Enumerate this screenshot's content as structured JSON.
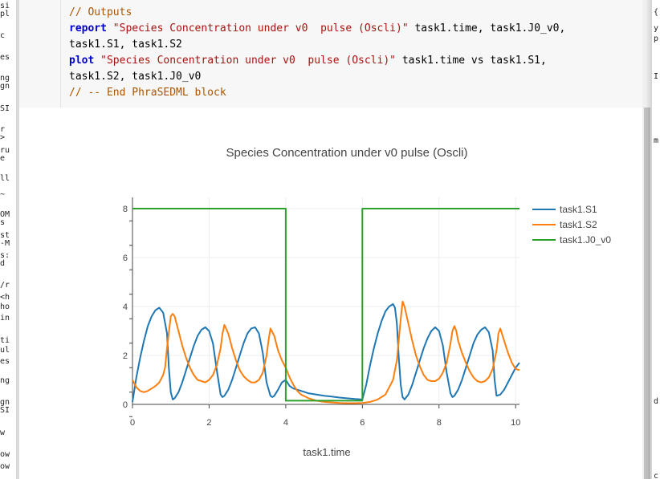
{
  "code_cell": {
    "comment_outputs": "// Outputs",
    "kw_report": "report",
    "report_title": "\"Species Concentration under v0  pulse (Oscli)\"",
    "report_args_1": " task1.time, task1.J0_v0,",
    "report_args_2": "task1.S1, task1.S2",
    "kw_plot": "plot",
    "plot_title": "\"Species Concentration under v0  pulse (Oscli)\"",
    "plot_args_1": " task1.time vs task1.S1,",
    "plot_args_2": "task1.S2, task1.J0_v0",
    "comment_end": "// -- End PhraSEDML block"
  },
  "left_fragments": [
    "si",
    "pl",
    "c",
    "es",
    "ng",
    "gn",
    "SI",
    "r",
    ">",
    "ru",
    "e",
    "ll",
    "~",
    "OM",
    "s",
    "st",
    "-M",
    "s:",
    "d",
    "/r",
    "<h",
    "ho",
    "in",
    "ti",
    "ul",
    "es",
    "ng",
    "gn",
    "SI",
    "w",
    "ow",
    "ow"
  ],
  "right_fragments": [
    "{",
    "y",
    "p",
    "I",
    "m",
    "d",
    "c"
  ],
  "colors": {
    "series_s1": "#1f77b4",
    "series_s2": "#ff7f0e",
    "series_j0": "#2ca02c"
  },
  "chart_data": {
    "type": "line",
    "title": "Species Concentration under v0  pulse (Oscli)",
    "xlabel": "task1.time",
    "ylabel": "",
    "xlim": [
      0,
      10.1
    ],
    "ylim": [
      -0.2,
      8.5
    ],
    "x_ticks": [
      0,
      2,
      4,
      6,
      8,
      10
    ],
    "y_ticks": [
      0,
      2,
      4,
      6,
      8
    ],
    "grid": true,
    "legend_position": "top-right",
    "series": [
      {
        "name": "task1.S1",
        "x": [
          0,
          0.1,
          0.2,
          0.3,
          0.4,
          0.5,
          0.6,
          0.7,
          0.8,
          0.9,
          0.95,
          1.0,
          1.05,
          1.1,
          1.2,
          1.3,
          1.4,
          1.5,
          1.6,
          1.7,
          1.8,
          1.9,
          2.0,
          2.1,
          2.2,
          2.3,
          2.35,
          2.4,
          2.5,
          2.6,
          2.7,
          2.8,
          2.9,
          3.0,
          3.1,
          3.2,
          3.3,
          3.4,
          3.5,
          3.6,
          3.65,
          3.7,
          3.8,
          3.9,
          4.0,
          4.1,
          4.2,
          4.4,
          4.6,
          4.8,
          5.0,
          5.2,
          5.4,
          5.6,
          5.8,
          6.0,
          6.1,
          6.2,
          6.3,
          6.4,
          6.5,
          6.6,
          6.7,
          6.8,
          6.85,
          6.9,
          6.95,
          7.0,
          7.05,
          7.1,
          7.2,
          7.3,
          7.4,
          7.5,
          7.6,
          7.7,
          7.8,
          7.9,
          8.0,
          8.1,
          8.2,
          8.3,
          8.35,
          8.4,
          8.5,
          8.6,
          8.7,
          8.8,
          8.9,
          9.0,
          9.1,
          9.2,
          9.3,
          9.4,
          9.45,
          9.5,
          9.6,
          9.7,
          9.8,
          9.9,
          10.0,
          10.1
        ],
        "y": [
          0.1,
          1.1,
          1.9,
          2.6,
          3.2,
          3.6,
          3.85,
          3.95,
          3.75,
          2.9,
          1.5,
          0.5,
          0.2,
          0.25,
          0.5,
          0.9,
          1.4,
          1.9,
          2.4,
          2.8,
          3.05,
          3.15,
          3.0,
          2.5,
          1.4,
          0.4,
          0.3,
          0.35,
          0.6,
          1.0,
          1.5,
          2.0,
          2.5,
          2.9,
          3.1,
          3.15,
          2.9,
          2.1,
          0.9,
          0.35,
          0.3,
          0.35,
          0.6,
          0.9,
          1.0,
          0.75,
          0.65,
          0.55,
          0.45,
          0.4,
          0.35,
          0.32,
          0.28,
          0.25,
          0.22,
          0.2,
          0.8,
          1.6,
          2.3,
          2.9,
          3.4,
          3.8,
          4.0,
          4.1,
          3.95,
          3.3,
          1.9,
          0.8,
          0.3,
          0.2,
          0.4,
          0.8,
          1.3,
          1.8,
          2.3,
          2.7,
          3.0,
          3.15,
          3.0,
          2.4,
          1.3,
          0.45,
          0.3,
          0.35,
          0.6,
          1.0,
          1.5,
          2.0,
          2.5,
          2.85,
          3.05,
          3.15,
          2.95,
          2.2,
          1.0,
          0.35,
          0.4,
          0.6,
          0.9,
          1.2,
          1.5,
          1.7
        ]
      },
      {
        "name": "task1.S2",
        "x": [
          0,
          0.1,
          0.2,
          0.3,
          0.4,
          0.5,
          0.6,
          0.7,
          0.8,
          0.85,
          0.9,
          1.0,
          1.05,
          1.1,
          1.2,
          1.3,
          1.4,
          1.5,
          1.6,
          1.7,
          1.8,
          1.9,
          2.0,
          2.1,
          2.2,
          2.3,
          2.35,
          2.4,
          2.5,
          2.6,
          2.7,
          2.8,
          2.9,
          3.0,
          3.1,
          3.2,
          3.3,
          3.4,
          3.5,
          3.55,
          3.6,
          3.7,
          3.8,
          3.9,
          4.0,
          4.1,
          4.2,
          4.3,
          4.4,
          4.6,
          4.8,
          5.0,
          5.2,
          5.4,
          5.6,
          5.8,
          6.0,
          6.2,
          6.4,
          6.6,
          6.8,
          6.9,
          7.0,
          7.05,
          7.1,
          7.2,
          7.3,
          7.4,
          7.5,
          7.6,
          7.7,
          7.8,
          7.9,
          8.0,
          8.1,
          8.2,
          8.3,
          8.35,
          8.4,
          8.45,
          8.5,
          8.6,
          8.7,
          8.8,
          8.9,
          9.0,
          9.1,
          9.2,
          9.3,
          9.4,
          9.5,
          9.55,
          9.6,
          9.7,
          9.8,
          9.9,
          10.0,
          10.1
        ],
        "y": [
          1.0,
          0.7,
          0.55,
          0.5,
          0.55,
          0.65,
          0.75,
          0.9,
          1.2,
          1.5,
          2.3,
          3.6,
          3.7,
          3.6,
          3.0,
          2.4,
          1.9,
          1.5,
          1.2,
          1.0,
          0.95,
          0.9,
          1.0,
          1.2,
          1.6,
          2.3,
          2.9,
          3.25,
          2.9,
          2.3,
          1.8,
          1.4,
          1.15,
          1.0,
          0.9,
          0.9,
          1.0,
          1.3,
          2.0,
          2.6,
          3.1,
          2.8,
          2.2,
          1.8,
          1.5,
          1.1,
          0.8,
          0.55,
          0.4,
          0.25,
          0.15,
          0.1,
          0.08,
          0.06,
          0.05,
          0.05,
          0.06,
          0.1,
          0.2,
          0.4,
          1.0,
          1.8,
          3.5,
          4.2,
          4.0,
          3.3,
          2.6,
          2.0,
          1.55,
          1.2,
          1.0,
          0.95,
          0.95,
          1.05,
          1.3,
          1.7,
          2.5,
          3.0,
          3.2,
          3.0,
          2.6,
          2.1,
          1.7,
          1.35,
          1.1,
          0.95,
          0.9,
          0.95,
          1.1,
          1.45,
          2.2,
          2.9,
          3.1,
          2.6,
          2.1,
          1.7,
          1.45,
          1.4
        ]
      },
      {
        "name": "task1.J0_v0",
        "x": [
          0,
          4.0,
          4.0,
          6.0,
          6.0,
          10.1
        ],
        "y": [
          8,
          8,
          0.15,
          0.15,
          8,
          8
        ]
      }
    ]
  }
}
